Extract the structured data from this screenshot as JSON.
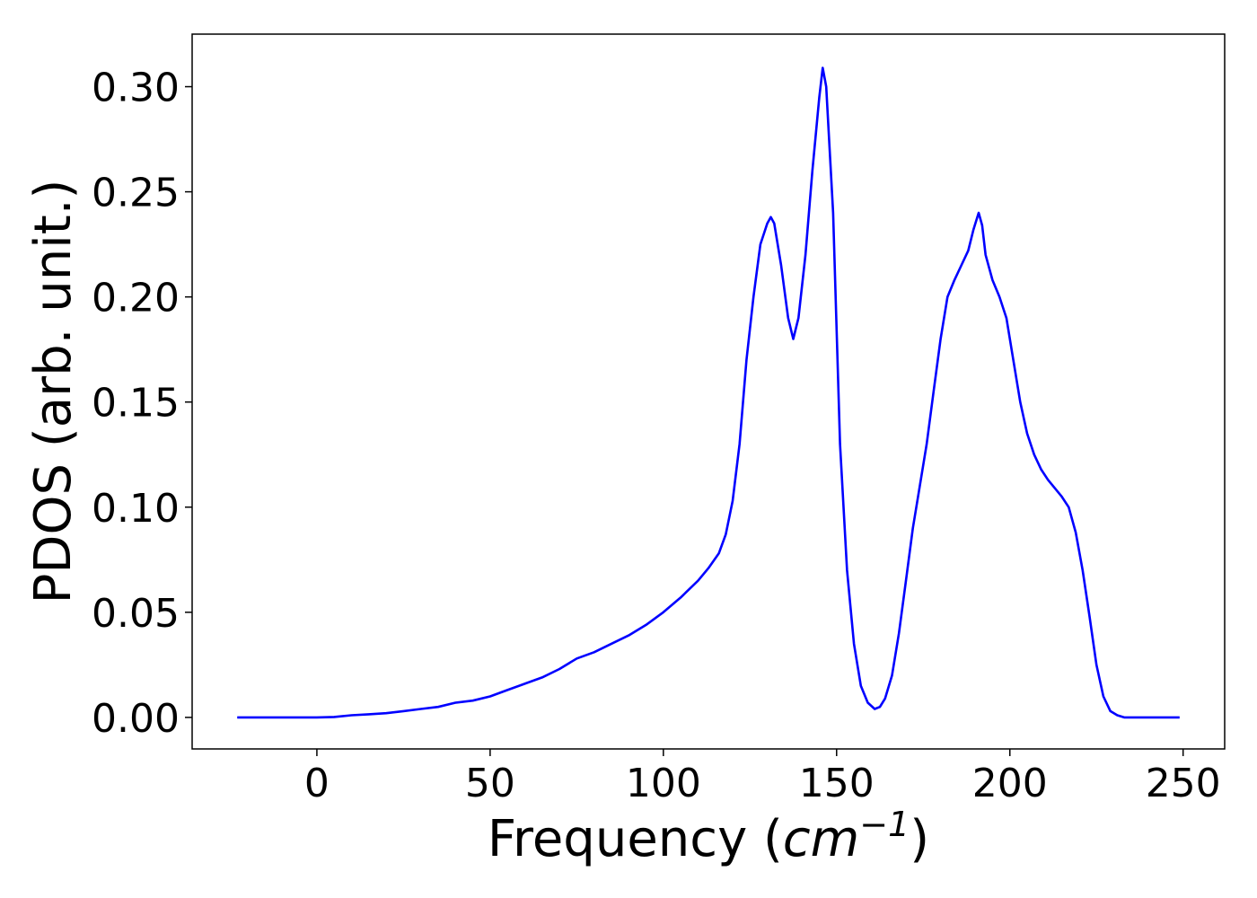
{
  "chart_data": {
    "type": "line",
    "title": "",
    "xlabel": {
      "prefix": "Frequency (",
      "var": "cm",
      "sup": "−1",
      "suffix": ")"
    },
    "ylabel": "PDOS (arb. unit.)",
    "xlim": [
      -36,
      262
    ],
    "ylim": [
      -0.015,
      0.325
    ],
    "xticks": [
      0,
      50,
      100,
      150,
      200,
      250
    ],
    "yticks": [
      0.0,
      0.05,
      0.1,
      0.15,
      0.2,
      0.25,
      0.3
    ],
    "xtick_labels": [
      "0",
      "50",
      "100",
      "150",
      "200",
      "250"
    ],
    "ytick_labels": [
      "0.00",
      "0.05",
      "0.10",
      "0.15",
      "0.20",
      "0.25",
      "0.30"
    ],
    "grid": false,
    "series": [
      {
        "color": "#0000ff",
        "x": [
          -23,
          0,
          5,
          10,
          15,
          20,
          25,
          30,
          35,
          40,
          45,
          50,
          55,
          60,
          65,
          70,
          75,
          80,
          85,
          90,
          95,
          100,
          105,
          110,
          113,
          116,
          118,
          120,
          122,
          124,
          126,
          128,
          130,
          131,
          132,
          134,
          136,
          137.5,
          139,
          141,
          143,
          145,
          146,
          147,
          149,
          151,
          153,
          155,
          157,
          159,
          161,
          162.5,
          164,
          166,
          168,
          170,
          172,
          174,
          176,
          178,
          180,
          182,
          184,
          186,
          188,
          189.5,
          191,
          192,
          193,
          195,
          197,
          199,
          201,
          203,
          205,
          207,
          209,
          211,
          213,
          215,
          217,
          219,
          221,
          223,
          225,
          227,
          229,
          231,
          233,
          236,
          249
        ],
        "y": [
          0.0,
          0.0,
          0.0002,
          0.001,
          0.0015,
          0.002,
          0.003,
          0.004,
          0.005,
          0.007,
          0.008,
          0.01,
          0.013,
          0.016,
          0.019,
          0.023,
          0.028,
          0.031,
          0.035,
          0.039,
          0.044,
          0.05,
          0.057,
          0.065,
          0.071,
          0.078,
          0.087,
          0.103,
          0.13,
          0.17,
          0.2,
          0.225,
          0.235,
          0.238,
          0.235,
          0.215,
          0.19,
          0.18,
          0.19,
          0.22,
          0.26,
          0.295,
          0.309,
          0.3,
          0.24,
          0.13,
          0.07,
          0.035,
          0.015,
          0.007,
          0.004,
          0.005,
          0.009,
          0.02,
          0.04,
          0.065,
          0.09,
          0.11,
          0.13,
          0.155,
          0.18,
          0.2,
          0.208,
          0.215,
          0.222,
          0.232,
          0.24,
          0.234,
          0.22,
          0.208,
          0.2,
          0.19,
          0.17,
          0.15,
          0.135,
          0.125,
          0.118,
          0.113,
          0.109,
          0.105,
          0.1,
          0.088,
          0.07,
          0.048,
          0.025,
          0.01,
          0.003,
          0.001,
          0.0,
          0.0,
          0.0
        ]
      }
    ]
  }
}
